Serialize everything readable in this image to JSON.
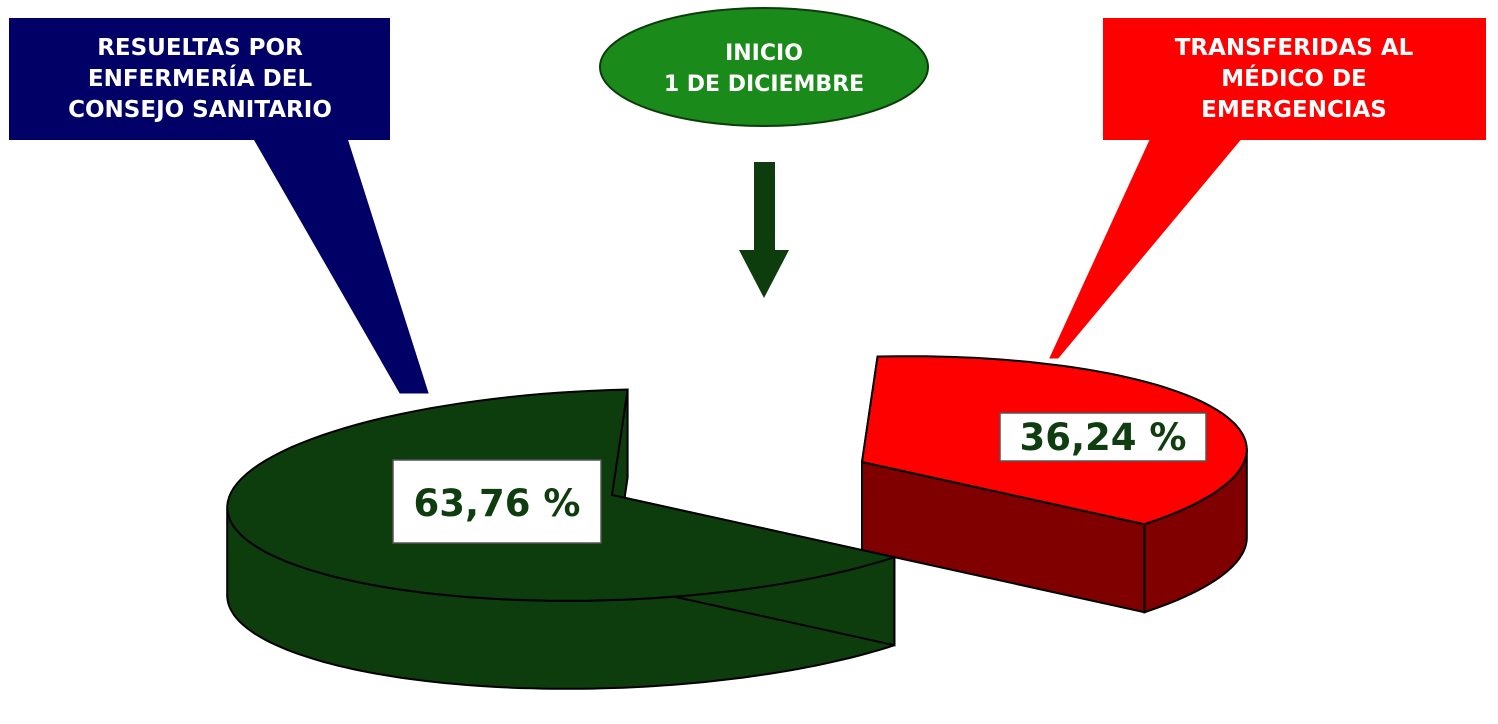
{
  "chart_data": {
    "type": "pie",
    "title": "",
    "categories": [
      "RESUELTAS POR ENFERMERÍA DEL CONSEJO SANITARIO",
      "TRANSFERIDAS AL MÉDICO DE EMERGENCIAS"
    ],
    "values": [
      63.76,
      36.24
    ],
    "value_labels": [
      "63,76 %",
      "36,24 %"
    ],
    "colors": [
      "#0d3d0d",
      "#ff0000"
    ],
    "style": "3d-exploded"
  },
  "callouts": {
    "left": {
      "lines": [
        "RESUELTAS POR",
        "ENFERMERÍA DEL",
        "CONSEJO SANITARIO"
      ],
      "color": "#000066"
    },
    "right": {
      "lines": [
        "TRANSFERIDAS AL",
        "MÉDICO DE",
        "EMERGENCIAS"
      ],
      "color": "#ff0000"
    }
  },
  "banner": {
    "lines": [
      "INICIO",
      "1 DE DICIEMBRE"
    ],
    "color": "#1a8a1a",
    "arrow_color": "#0d3d0d"
  }
}
